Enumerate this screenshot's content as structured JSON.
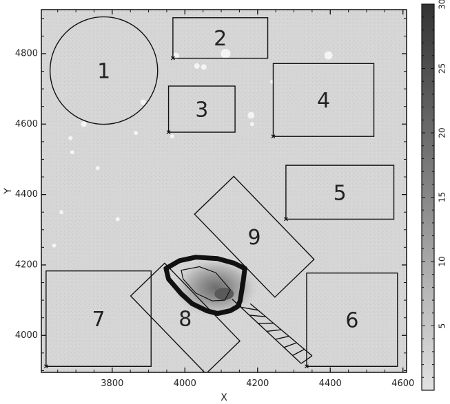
{
  "chart_data": {
    "type": "heatmap",
    "xlabel": "X",
    "ylabel": "Y",
    "xlim": [
      3605,
      4610
    ],
    "ylim": [
      3895,
      4925
    ],
    "xticks": [
      3800,
      4000,
      4200,
      4400,
      4600
    ],
    "yticks": [
      4000,
      4200,
      4400,
      4600,
      4800
    ],
    "colorbar": {
      "range": [
        0,
        30
      ],
      "ticks": [
        5,
        10,
        15,
        20,
        25,
        30
      ],
      "colormap": "grayscale, light at 0 to dark at 30"
    },
    "regions": [
      {
        "label": "1",
        "shape": "circle",
        "center": [
          3777,
          4752
        ],
        "radius": 148
      },
      {
        "label": "2",
        "shape": "box",
        "x_range": [
          3967,
          4228
        ],
        "y_range": [
          4787,
          4902
        ]
      },
      {
        "label": "3",
        "shape": "box",
        "x_range": [
          3955,
          4138
        ],
        "y_range": [
          4577,
          4708
        ]
      },
      {
        "label": "4",
        "shape": "box",
        "x_range": [
          4243,
          4520
        ],
        "y_range": [
          4565,
          4772
        ]
      },
      {
        "label": "5",
        "shape": "box",
        "x_range": [
          4278,
          4575
        ],
        "y_range": [
          4330,
          4483
        ]
      },
      {
        "label": "6",
        "shape": "box",
        "x_range": [
          4335,
          4585
        ],
        "y_range": [
          3912,
          4177
        ]
      },
      {
        "label": "7",
        "shape": "box",
        "x_range": [
          3618,
          3907
        ],
        "y_range": [
          3912,
          4183
        ]
      },
      {
        "label": "8",
        "shape": "rotated-box",
        "center": [
          4001,
          4048
        ],
        "width": 130,
        "height": 298,
        "angle_deg": -44
      },
      {
        "label": "9",
        "shape": "rotated-box",
        "center": [
          4191,
          4280
        ],
        "width": 150,
        "height": 318,
        "angle_deg": -44
      }
    ],
    "annotations": [
      {
        "type": "source-contour",
        "note": "thick outline around the bright diffuse source near (4080, 4130)"
      },
      {
        "type": "hatched-strip",
        "note": "diagonal hatched band from the contour toward the lower right"
      }
    ]
  }
}
